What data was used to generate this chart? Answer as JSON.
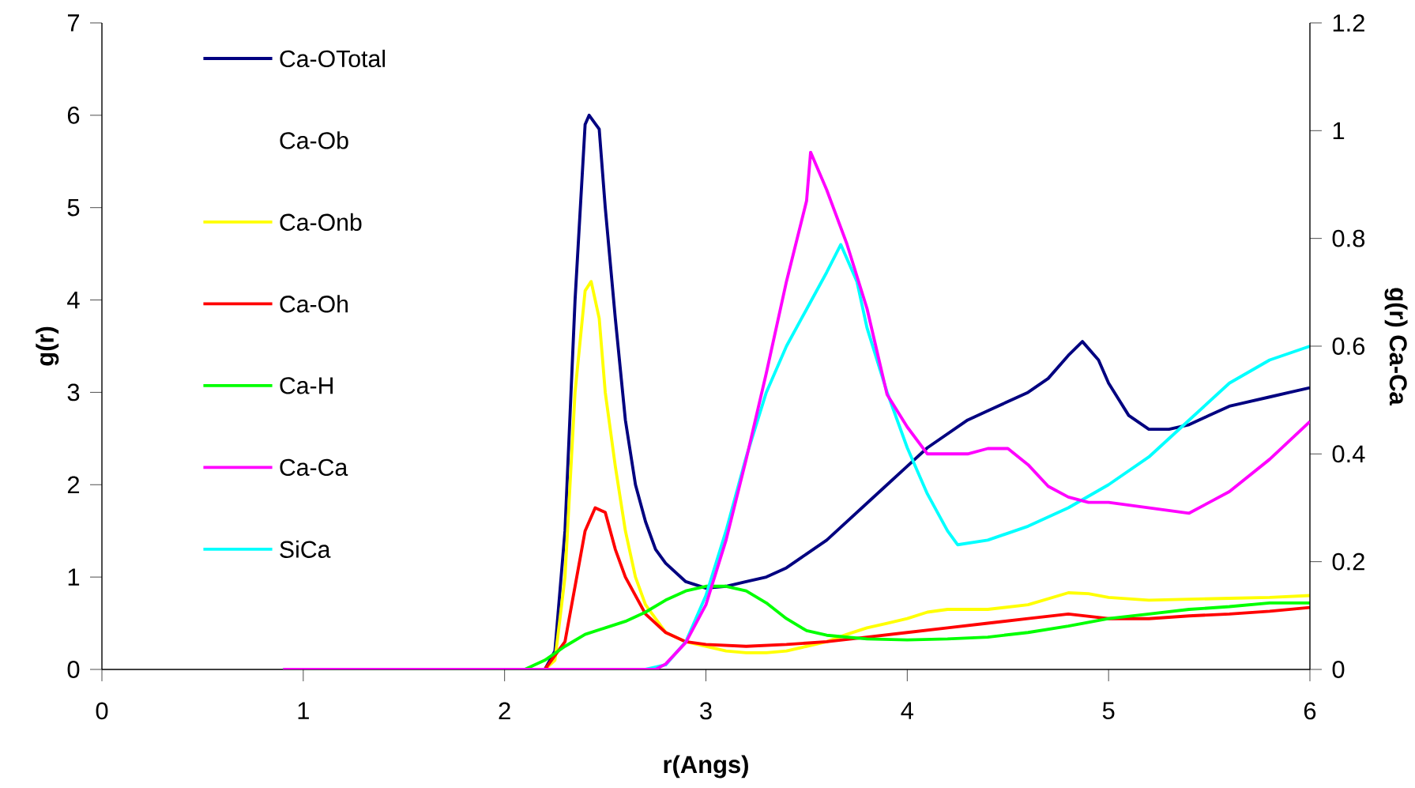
{
  "chart_data": {
    "type": "line",
    "xlabel": "r(Angs)",
    "ylabel": "g(r)",
    "y2label": "g(r) Ca-Ca",
    "xlim": [
      0,
      6
    ],
    "xticks": [
      0,
      1,
      2,
      3,
      4,
      5,
      6
    ],
    "ylim": [
      0,
      7
    ],
    "yticks": [
      0,
      1,
      2,
      3,
      4,
      5,
      6,
      7
    ],
    "y2lim": [
      0,
      1.2
    ],
    "y2ticks": [
      0,
      0.2,
      0.4,
      0.6,
      0.8,
      1,
      1.2
    ],
    "legend": "top left",
    "series": [
      {
        "name": "Ca-OTotal",
        "color": "#000080",
        "x": [
          0.9,
          2.2,
          2.25,
          2.3,
          2.35,
          2.4,
          2.42,
          2.47,
          2.5,
          2.55,
          2.6,
          2.65,
          2.7,
          2.75,
          2.8,
          2.9,
          3.0,
          3.1,
          3.2,
          3.3,
          3.4,
          3.5,
          3.6,
          3.7,
          3.8,
          3.9,
          4.0,
          4.1,
          4.2,
          4.3,
          4.4,
          4.5,
          4.6,
          4.7,
          4.8,
          4.87,
          4.95,
          5.0,
          5.1,
          5.2,
          5.3,
          5.4,
          5.5,
          5.6,
          5.7,
          5.8,
          5.9,
          6.0
        ],
        "values": [
          0,
          0,
          0.2,
          1.5,
          4.0,
          5.9,
          6.0,
          5.85,
          5.0,
          3.8,
          2.7,
          2.0,
          1.6,
          1.3,
          1.15,
          0.95,
          0.88,
          0.9,
          0.95,
          1.0,
          1.1,
          1.25,
          1.4,
          1.6,
          1.8,
          2.0,
          2.2,
          2.4,
          2.55,
          2.7,
          2.8,
          2.9,
          3.0,
          3.15,
          3.4,
          3.55,
          3.35,
          3.1,
          2.75,
          2.6,
          2.6,
          2.65,
          2.75,
          2.85,
          2.9,
          2.95,
          3.0,
          3.05
        ]
      },
      {
        "name": "Ca-Ob"
      },
      {
        "name": "Ca-Onb",
        "color": "#ffff00",
        "x": [
          0.9,
          2.2,
          2.25,
          2.3,
          2.35,
          2.4,
          2.43,
          2.47,
          2.5,
          2.55,
          2.6,
          2.65,
          2.7,
          2.8,
          2.9,
          3.0,
          3.1,
          3.2,
          3.3,
          3.4,
          3.5,
          3.6,
          3.7,
          3.8,
          3.9,
          4.0,
          4.1,
          4.2,
          4.4,
          4.6,
          4.8,
          4.9,
          5.0,
          5.2,
          5.4,
          5.6,
          5.8,
          6.0
        ],
        "values": [
          0,
          0,
          0.1,
          1.0,
          3.0,
          4.1,
          4.2,
          3.8,
          3.0,
          2.2,
          1.5,
          1.0,
          0.7,
          0.4,
          0.3,
          0.25,
          0.2,
          0.18,
          0.18,
          0.2,
          0.25,
          0.3,
          0.38,
          0.45,
          0.5,
          0.55,
          0.62,
          0.65,
          0.65,
          0.7,
          0.83,
          0.82,
          0.78,
          0.75,
          0.76,
          0.77,
          0.78,
          0.8
        ]
      },
      {
        "name": "Ca-Oh",
        "color": "#ff0000",
        "x": [
          0.9,
          2.2,
          2.3,
          2.35,
          2.4,
          2.45,
          2.5,
          2.55,
          2.6,
          2.7,
          2.8,
          2.9,
          3.0,
          3.2,
          3.4,
          3.6,
          3.8,
          4.0,
          4.2,
          4.4,
          4.6,
          4.8,
          5.0,
          5.2,
          5.4,
          5.6,
          5.8,
          6.0
        ],
        "values": [
          0,
          0,
          0.3,
          0.9,
          1.5,
          1.75,
          1.7,
          1.3,
          1.0,
          0.6,
          0.4,
          0.3,
          0.27,
          0.25,
          0.27,
          0.3,
          0.35,
          0.4,
          0.45,
          0.5,
          0.55,
          0.6,
          0.55,
          0.55,
          0.58,
          0.6,
          0.63,
          0.67
        ]
      },
      {
        "name": "Ca-H",
        "color": "#00ff00",
        "x": [
          0.9,
          2.1,
          2.2,
          2.3,
          2.4,
          2.5,
          2.6,
          2.7,
          2.8,
          2.9,
          3.0,
          3.1,
          3.2,
          3.3,
          3.4,
          3.5,
          3.6,
          3.7,
          3.8,
          4.0,
          4.2,
          4.4,
          4.6,
          4.8,
          5.0,
          5.2,
          5.4,
          5.6,
          5.8,
          6.0
        ],
        "values": [
          0,
          0,
          0.1,
          0.25,
          0.38,
          0.45,
          0.52,
          0.62,
          0.75,
          0.85,
          0.9,
          0.9,
          0.85,
          0.72,
          0.55,
          0.42,
          0.37,
          0.35,
          0.33,
          0.32,
          0.33,
          0.35,
          0.4,
          0.47,
          0.55,
          0.6,
          0.65,
          0.68,
          0.72,
          0.72
        ]
      },
      {
        "name": "Ca-Ca",
        "color": "#ff00ff",
        "axis": "y2",
        "x": [
          0.9,
          2.75,
          2.8,
          2.9,
          3.0,
          3.1,
          3.2,
          3.3,
          3.4,
          3.5,
          3.52,
          3.6,
          3.7,
          3.8,
          3.9,
          4.0,
          4.1,
          4.2,
          4.3,
          4.4,
          4.5,
          4.6,
          4.7,
          4.8,
          4.9,
          5.0,
          5.2,
          5.4,
          5.5,
          5.6,
          5.8,
          6.0
        ],
        "values": [
          0,
          0,
          0.01,
          0.05,
          0.12,
          0.24,
          0.39,
          0.55,
          0.72,
          0.87,
          0.96,
          0.89,
          0.79,
          0.67,
          0.51,
          0.45,
          0.4,
          0.4,
          0.4,
          0.41,
          0.41,
          0.38,
          0.34,
          0.32,
          0.31,
          0.31,
          0.3,
          0.29,
          0.31,
          0.33,
          0.39,
          0.46
        ]
      },
      {
        "name": "SiCa",
        "color": "#00ffff",
        "x": [
          0.9,
          2.7,
          2.8,
          2.9,
          3.0,
          3.1,
          3.2,
          3.3,
          3.4,
          3.5,
          3.6,
          3.67,
          3.75,
          3.8,
          3.9,
          4.0,
          4.1,
          4.2,
          4.25,
          4.4,
          4.6,
          4.8,
          5.0,
          5.2,
          5.4,
          5.6,
          5.8,
          6.0
        ],
        "values": [
          0,
          0,
          0.05,
          0.3,
          0.8,
          1.5,
          2.3,
          3.0,
          3.5,
          3.9,
          4.3,
          4.6,
          4.2,
          3.7,
          3.0,
          2.4,
          1.9,
          1.5,
          1.35,
          1.4,
          1.55,
          1.75,
          2.0,
          2.3,
          2.7,
          3.1,
          3.35,
          3.5
        ]
      }
    ]
  }
}
